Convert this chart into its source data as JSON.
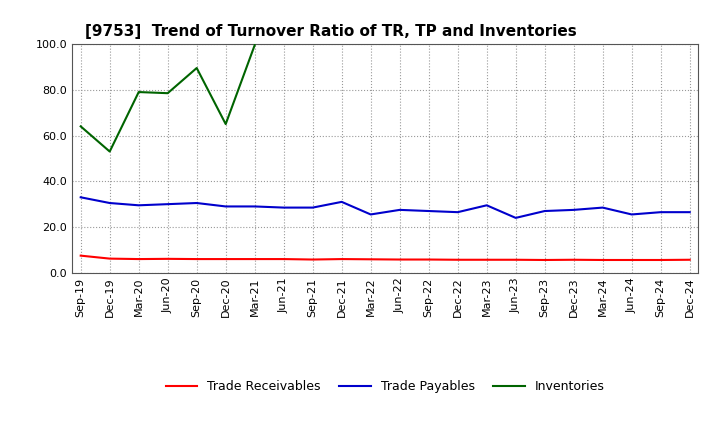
{
  "title": "[9753]  Trend of Turnover Ratio of TR, TP and Inventories",
  "xlabels": [
    "Sep-19",
    "Dec-19",
    "Mar-20",
    "Jun-20",
    "Sep-20",
    "Dec-20",
    "Mar-21",
    "Jun-21",
    "Sep-21",
    "Dec-21",
    "Mar-22",
    "Jun-22",
    "Sep-22",
    "Dec-22",
    "Mar-23",
    "Jun-23",
    "Sep-23",
    "Dec-23",
    "Mar-24",
    "Jun-24",
    "Sep-24",
    "Dec-24"
  ],
  "trade_receivables": [
    7.5,
    6.2,
    6.0,
    6.1,
    6.0,
    6.0,
    6.0,
    6.0,
    5.8,
    6.0,
    5.9,
    5.8,
    5.8,
    5.7,
    5.7,
    5.7,
    5.6,
    5.7,
    5.6,
    5.6,
    5.6,
    5.7
  ],
  "trade_payables": [
    33.0,
    30.5,
    29.5,
    30.0,
    30.5,
    29.0,
    29.0,
    28.5,
    28.5,
    31.0,
    25.5,
    27.5,
    27.0,
    26.5,
    29.5,
    24.0,
    27.0,
    27.5,
    28.5,
    25.5,
    26.5,
    26.5
  ],
  "inventories": [
    64.0,
    53.0,
    79.0,
    78.5,
    89.5,
    65.0,
    99.5,
    null,
    null,
    null,
    null,
    null,
    null,
    null,
    null,
    null,
    null,
    null,
    null,
    null,
    null,
    null
  ],
  "ylim": [
    0.0,
    100.0
  ],
  "yticks": [
    0.0,
    20.0,
    40.0,
    60.0,
    80.0,
    100.0
  ],
  "color_tr": "#ff0000",
  "color_tp": "#0000cc",
  "color_inv": "#006400",
  "legend_tr": "Trade Receivables",
  "legend_tp": "Trade Payables",
  "legend_inv": "Inventories",
  "background_color": "#ffffff",
  "grid_color": "#999999",
  "title_fontsize": 11,
  "tick_fontsize": 8,
  "legend_fontsize": 9
}
